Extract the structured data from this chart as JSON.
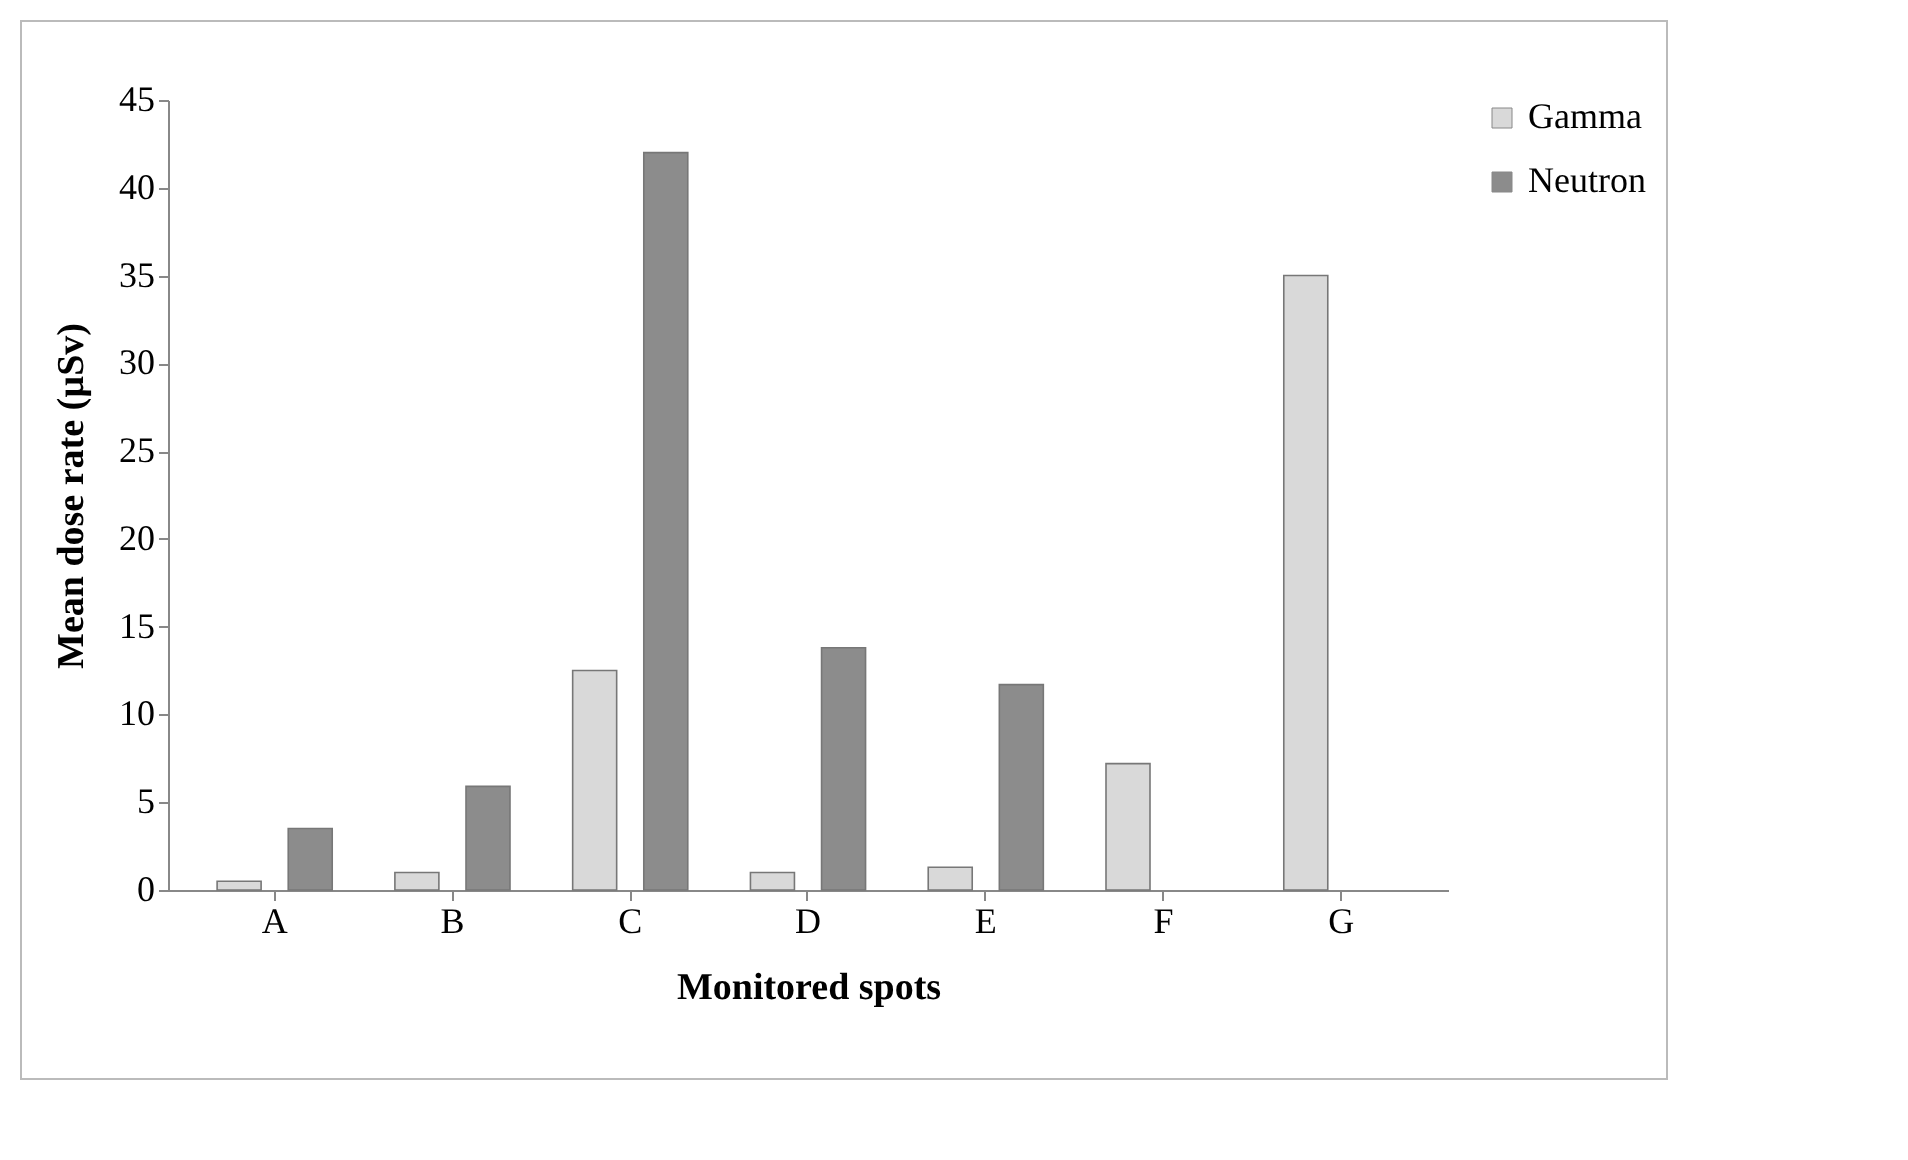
{
  "chart_data": {
    "type": "bar",
    "xlabel": "Monitored spots",
    "ylabel": "Mean dose rate (µSv)",
    "categories": [
      "A",
      "B",
      "C",
      "D",
      "E",
      "F",
      "G"
    ],
    "series": [
      {
        "name": "Gamma",
        "color": "#d9d9d9",
        "values": [
          0.5,
          1,
          12.5,
          1,
          1.3,
          7.2,
          35
        ]
      },
      {
        "name": "Neutron",
        "color": "#8c8c8c",
        "values": [
          3.5,
          5.9,
          42,
          13.8,
          11.7,
          null,
          null
        ]
      }
    ],
    "ylim": [
      0,
      45
    ],
    "yticks": [
      0,
      5,
      10,
      15,
      20,
      25,
      30,
      35,
      40,
      45
    ],
    "grid": false,
    "legend": "top right"
  }
}
